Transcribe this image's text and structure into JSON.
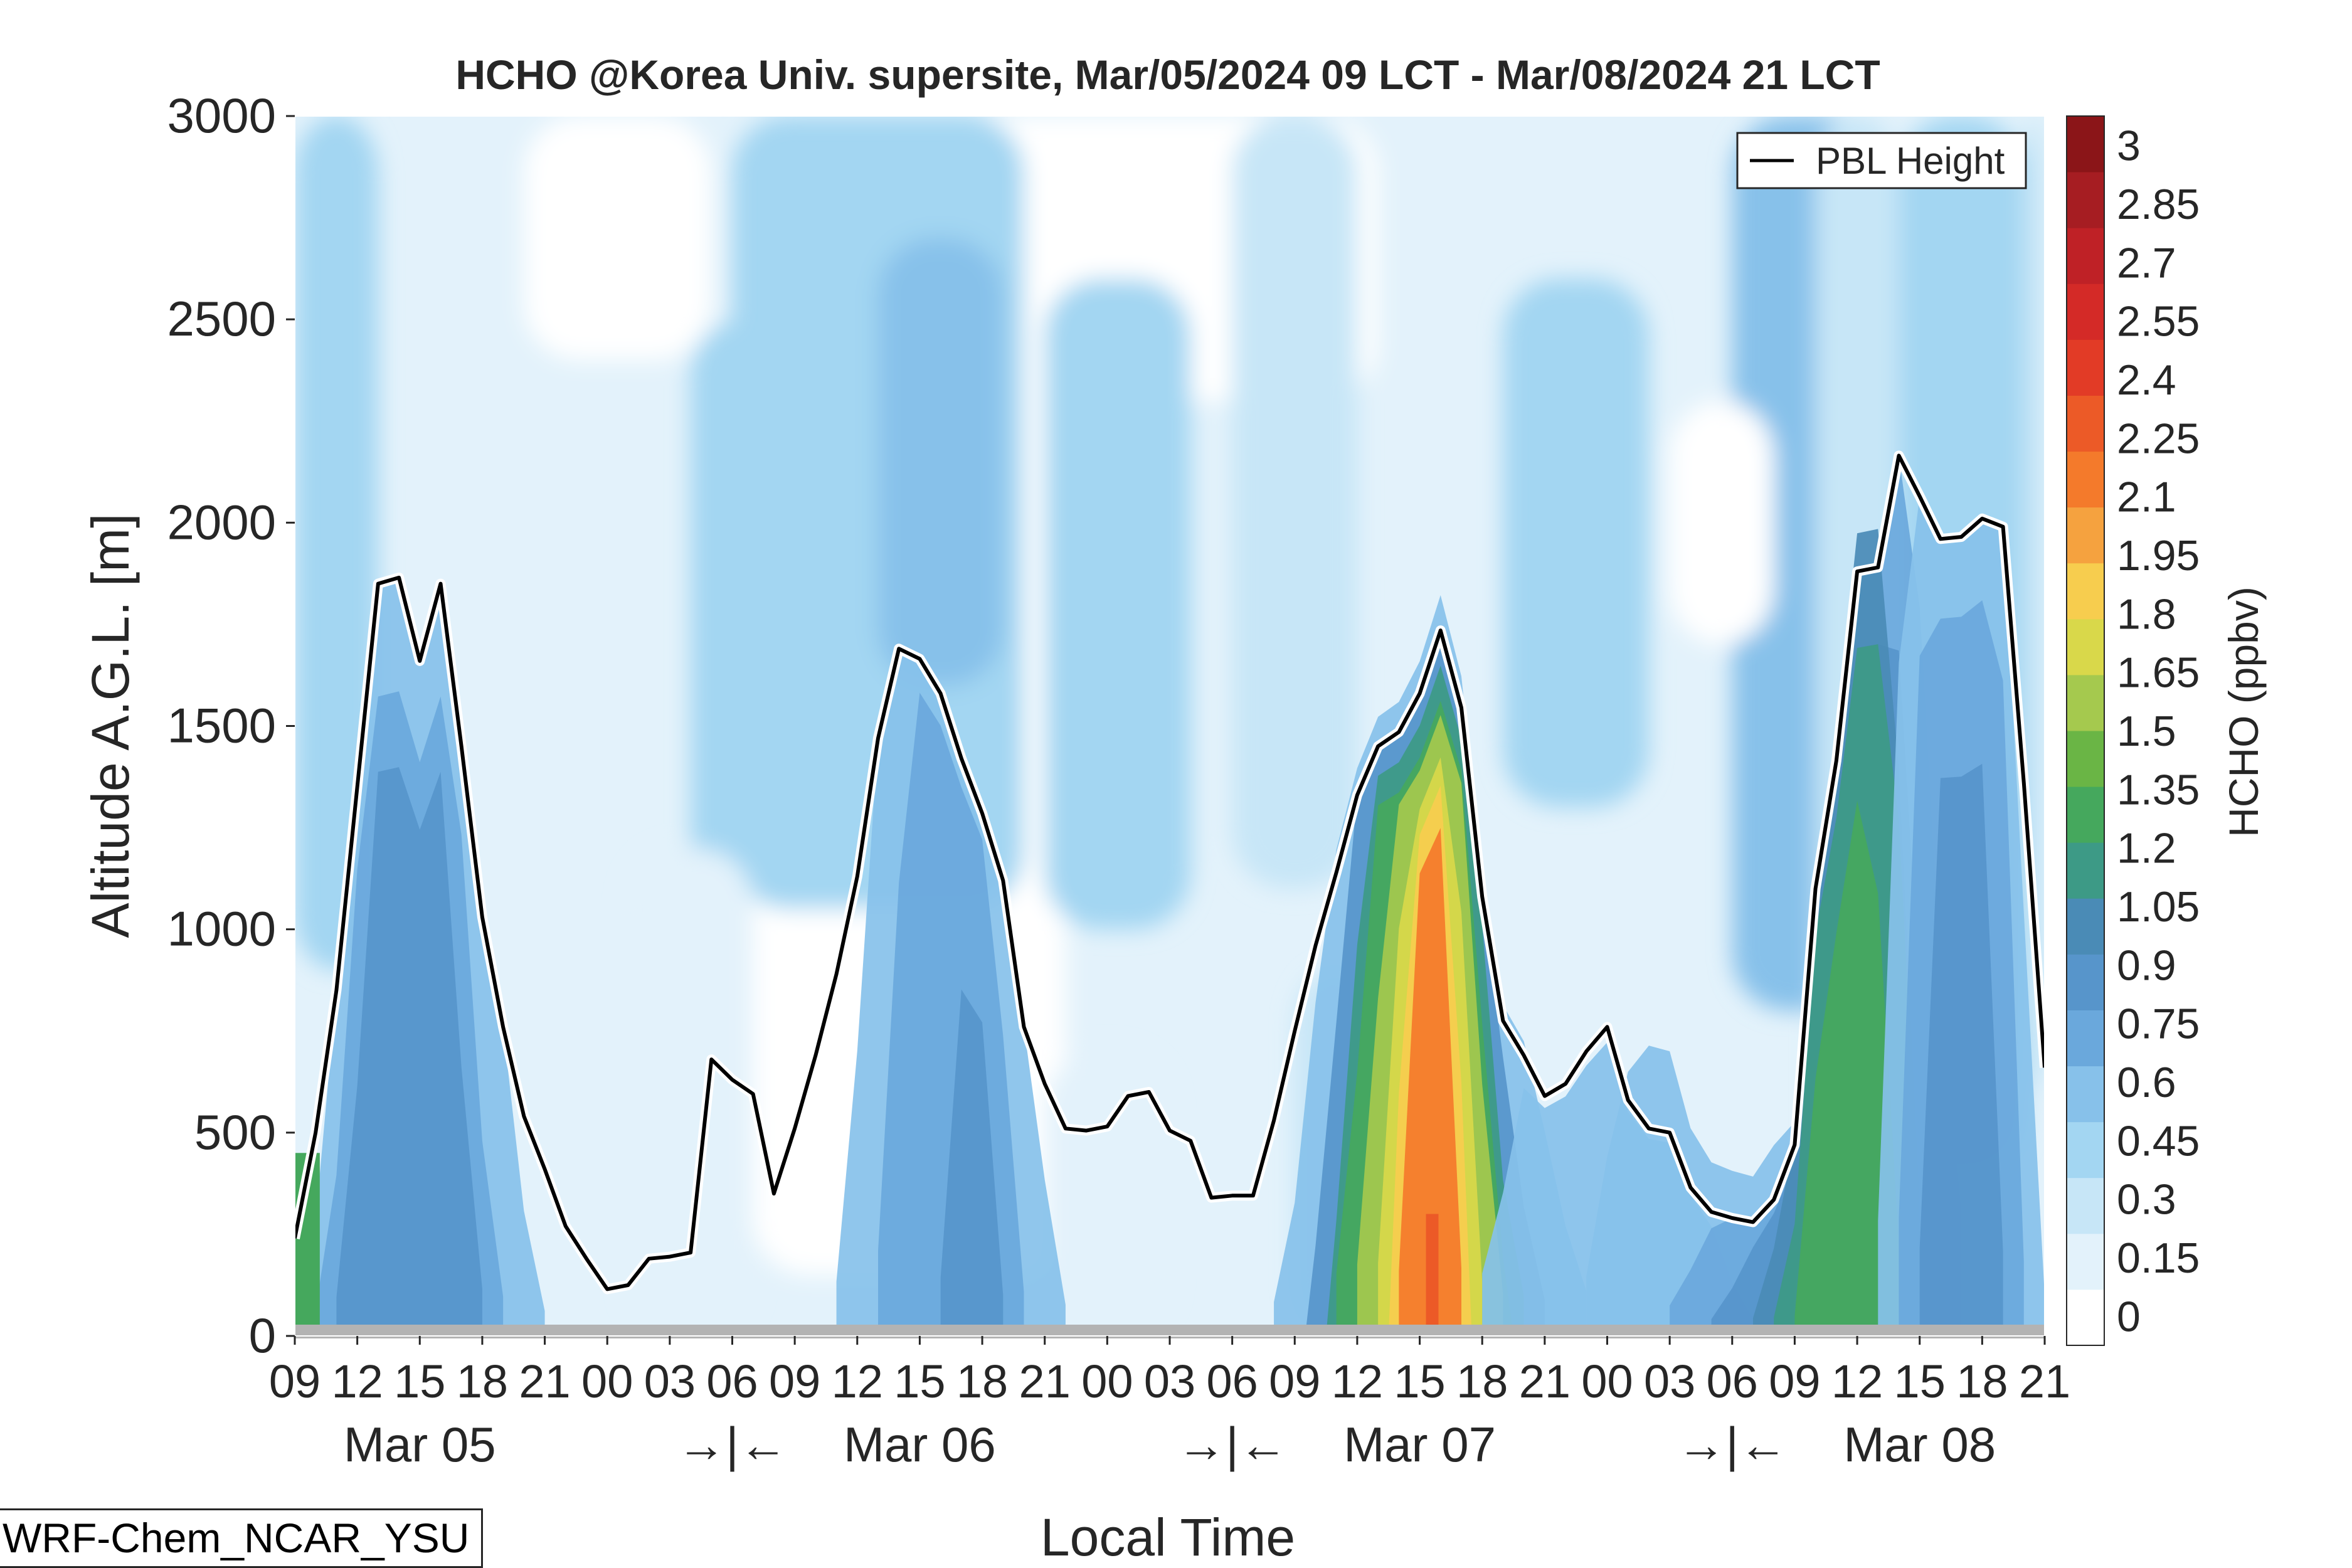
{
  "chart_data": {
    "type": "contour",
    "title": "HCHO @Korea Univ. supersite, Mar/05/2024 09 LCT - Mar/08/2024 21 LCT",
    "xlabel": "Local Time",
    "ylabel": "Altitude A.G.L. [m]",
    "ylim": [
      0,
      3000
    ],
    "yticks": [
      "0",
      "500",
      "1000",
      "1500",
      "2000",
      "2500",
      "3000"
    ],
    "x_tick_labels": [
      "09",
      "12",
      "15",
      "18",
      "21",
      "00",
      "03",
      "06",
      "09",
      "12",
      "15",
      "18",
      "21",
      "00",
      "03",
      "06",
      "09",
      "12",
      "15",
      "18",
      "21",
      "00",
      "03",
      "06",
      "09",
      "12",
      "15",
      "18",
      "21"
    ],
    "day_labels": [
      {
        "text": "Mar 05",
        "hour": 6
      },
      {
        "text": "→|←",
        "hour": 21
      },
      {
        "text": "Mar 06",
        "hour": 30
      },
      {
        "text": "→|←",
        "hour": 45
      },
      {
        "text": "Mar 07",
        "hour": 54
      },
      {
        "text": "→|←",
        "hour": 69
      },
      {
        "text": "Mar 08",
        "hour": 78
      }
    ],
    "x_hours_range": [
      0,
      84
    ],
    "colorbar": {
      "label": "HCHO (ppbv)",
      "levels": [
        "0",
        "0.15",
        "0.3",
        "0.45",
        "0.6",
        "0.75",
        "0.9",
        "1.05",
        "1.2",
        "1.35",
        "1.5",
        "1.65",
        "1.8",
        "1.95",
        "2.1",
        "2.25",
        "2.4",
        "2.55",
        "2.7",
        "2.85",
        "3"
      ],
      "colors": [
        "#ffffff",
        "#e3f2fb",
        "#c7e6f7",
        "#a3d6f2",
        "#87c1ea",
        "#6aa8dc",
        "#5795cb",
        "#4a8bb6",
        "#3d9a86",
        "#45a85d",
        "#6ab545",
        "#a5c94e",
        "#d9d84a",
        "#f7cd4e",
        "#f5a23f",
        "#f47a2b",
        "#ec5a27",
        "#e23b26",
        "#d42a27",
        "#bf2126",
        "#a61d22",
        "#8b1518"
      ]
    },
    "legend": {
      "entries": [
        "PBL Height"
      ],
      "placement": "top-right"
    },
    "pbl_height": {
      "name": "PBL Height",
      "hours": [
        0,
        1,
        2,
        3,
        4,
        5,
        6,
        7,
        8,
        9,
        10,
        11,
        12,
        13,
        14,
        15,
        16,
        17,
        18,
        19,
        20,
        21,
        22,
        23,
        24,
        25,
        26,
        27,
        28,
        29,
        30,
        31,
        32,
        33,
        34,
        35,
        36,
        37,
        38,
        39,
        40,
        41,
        42,
        43,
        44,
        45,
        46,
        47,
        48,
        49,
        50,
        51,
        52,
        53,
        54,
        55,
        56,
        57,
        58,
        59,
        60,
        61,
        62,
        63,
        64,
        65,
        66,
        67,
        68,
        69,
        70,
        71,
        72,
        73,
        74,
        75,
        76,
        77,
        78,
        79,
        80,
        81,
        82,
        83,
        84
      ],
      "values": [
        240,
        500,
        850,
        1350,
        1850,
        1865,
        1660,
        1850,
        1450,
        1030,
        760,
        540,
        410,
        270,
        190,
        115,
        125,
        190,
        195,
        205,
        680,
        630,
        595,
        350,
        510,
        690,
        890,
        1130,
        1470,
        1690,
        1665,
        1580,
        1420,
        1285,
        1120,
        760,
        620,
        510,
        505,
        515,
        590,
        600,
        505,
        480,
        340,
        345,
        345,
        530,
        750,
        960,
        1140,
        1330,
        1450,
        1485,
        1580,
        1735,
        1545,
        1080,
        775,
        690,
        590,
        620,
        700,
        760,
        580,
        510,
        500,
        365,
        305,
        290,
        280,
        335,
        470,
        1100,
        1415,
        1880,
        1890,
        2165,
        2065,
        1960,
        1965,
        2010,
        1990,
        1360,
        660
      ]
    }
  },
  "annotation": {
    "model_label": "WRF-Chem_NCAR_YSU"
  }
}
